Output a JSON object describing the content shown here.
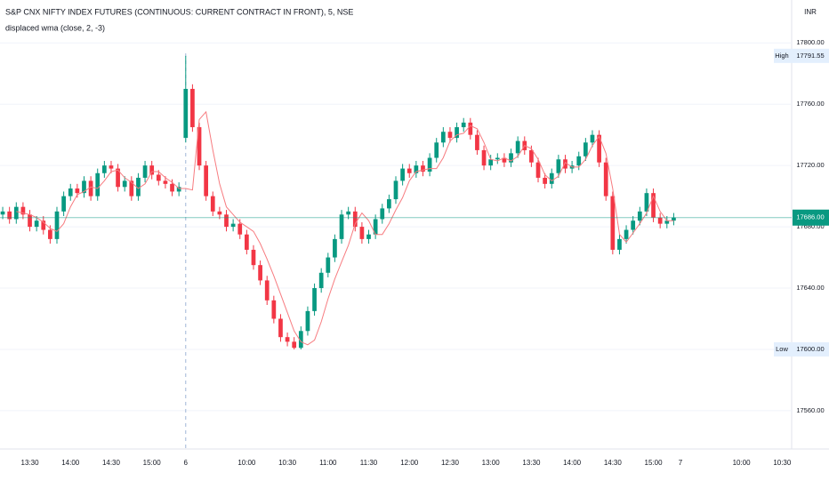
{
  "chart_data": {
    "type": "candlestick",
    "title": "S&P CNX NIFTY INDEX FUTURES (CONTINUOUS: CURRENT CONTRACT IN FRONT), 5, NSE",
    "currency": "INR",
    "up_color": "#089981",
    "down_color": "#f23645",
    "grid": true,
    "ylim": [
      17535,
      17828
    ],
    "yticks": [
      {
        "value": 17560,
        "label": "17560.00"
      },
      {
        "value": 17600,
        "label": "17600.00"
      },
      {
        "value": 17640,
        "label": "17640.00"
      },
      {
        "value": 17680,
        "label": "17680.00"
      },
      {
        "value": 17720,
        "label": "17720.00"
      },
      {
        "value": 17760,
        "label": "17760.00"
      },
      {
        "value": 17800,
        "label": "17800.00"
      }
    ],
    "xlim": [
      -0.4,
      116.4
    ],
    "xticks": [
      {
        "value": 4,
        "label": "13:30"
      },
      {
        "value": 10,
        "label": "14:00"
      },
      {
        "value": 16,
        "label": "14:30"
      },
      {
        "value": 22,
        "label": "15:00"
      },
      {
        "value": 27,
        "label": "6"
      },
      {
        "value": 36,
        "label": "10:00"
      },
      {
        "value": 42,
        "label": "10:30"
      },
      {
        "value": 48,
        "label": "11:00"
      },
      {
        "value": 54,
        "label": "11:30"
      },
      {
        "value": 60,
        "label": "12:00"
      },
      {
        "value": 66,
        "label": "12:30"
      },
      {
        "value": 72,
        "label": "13:00"
      },
      {
        "value": 78,
        "label": "13:30"
      },
      {
        "value": 84,
        "label": "14:00"
      },
      {
        "value": 90,
        "label": "14:30"
      },
      {
        "value": 96,
        "label": "15:00"
      },
      {
        "value": 100,
        "label": "7"
      },
      {
        "value": 109,
        "label": "10:00"
      },
      {
        "value": 115,
        "label": "10:30"
      }
    ],
    "session_break": 27,
    "open": [
      17688,
      17690,
      17685,
      17693,
      17688,
      17680,
      17684,
      17678,
      17672,
      17690,
      17700,
      17705,
      17702,
      17710,
      17700,
      17715,
      17720,
      17718,
      17706,
      17710,
      17700,
      17712,
      17720,
      17714,
      17710,
      17708,
      17703,
      17738,
      17770,
      17745,
      17720,
      17700,
      17690,
      17688,
      17680,
      17682,
      17675,
      17665,
      17655,
      17645,
      17632,
      17620,
      17608,
      17605,
      17601,
      17612,
      17625,
      17640,
      17650,
      17660,
      17672,
      17688,
      17690,
      17680,
      17672,
      17675,
      17685,
      17692,
      17698,
      17710,
      17718,
      17715,
      17720,
      17716,
      17725,
      17735,
      17742,
      17738,
      17745,
      17748,
      17740,
      17730,
      17720,
      17724,
      17725,
      17722,
      17728,
      17736,
      17730,
      17722,
      17712,
      17708,
      17715,
      17724,
      17718,
      17720,
      17726,
      17735,
      17740,
      17722,
      17700,
      17665,
      17672,
      17678,
      17684,
      17690,
      17702,
      17686,
      17682,
      17684
    ],
    "high": [
      17693,
      17693,
      17696,
      17696,
      17691,
      17687,
      17687,
      17681,
      17693,
      17703,
      17708,
      17708,
      17713,
      17713,
      17718,
      17723,
      17723,
      17721,
      17713,
      17713,
      17715,
      17723,
      17723,
      17717,
      17713,
      17711,
      17709,
      17791.55,
      17773,
      17748,
      17723,
      17703,
      17693,
      17691,
      17685,
      17685,
      17678,
      17668,
      17658,
      17648,
      17635,
      17623,
      17611,
      17608,
      17615,
      17628,
      17643,
      17653,
      17663,
      17675,
      17691,
      17693,
      17693,
      17683,
      17678,
      17688,
      17695,
      17701,
      17713,
      17721,
      17721,
      17723,
      17723,
      17728,
      17738,
      17745,
      17745,
      17748,
      17751,
      17751,
      17743,
      17733,
      17727,
      17728,
      17728,
      17731,
      17739,
      17739,
      17733,
      17725,
      17715,
      17718,
      17727,
      17727,
      17723,
      17729,
      17738,
      17743,
      17743,
      17725,
      17703,
      17675,
      17681,
      17687,
      17693,
      17705,
      17705,
      17689,
      17687,
      17689
    ],
    "low": [
      17685,
      17682,
      17682,
      17685,
      17677,
      17677,
      17675,
      17669,
      17669,
      17687,
      17697,
      17699,
      17699,
      17697,
      17697,
      17712,
      17715,
      17703,
      17703,
      17697,
      17697,
      17709,
      17711,
      17707,
      17705,
      17700,
      17700,
      17735,
      17742,
      17717,
      17697,
      17687,
      17685,
      17677,
      17677,
      17672,
      17662,
      17652,
      17642,
      17629,
      17617,
      17605,
      17602,
      17600,
      17600,
      17609,
      17622,
      17637,
      17647,
      17657,
      17669,
      17685,
      17677,
      17669,
      17669,
      17672,
      17682,
      17689,
      17695,
      17707,
      17712,
      17712,
      17713,
      17713,
      17722,
      17732,
      17735,
      17735,
      17742,
      17737,
      17727,
      17717,
      17717,
      17721,
      17719,
      17719,
      17725,
      17727,
      17719,
      17709,
      17705,
      17705,
      17712,
      17715,
      17715,
      17717,
      17723,
      17732,
      17719,
      17697,
      17662,
      17662,
      17669,
      17675,
      17681,
      17687,
      17683,
      17679,
      17679,
      17681
    ],
    "close": [
      17690,
      17685,
      17693,
      17688,
      17680,
      17684,
      17678,
      17672,
      17690,
      17700,
      17705,
      17702,
      17710,
      17700,
      17715,
      17720,
      17718,
      17706,
      17710,
      17700,
      17712,
      17720,
      17714,
      17710,
      17708,
      17703,
      17706,
      17770,
      17745,
      17720,
      17700,
      17690,
      17688,
      17680,
      17682,
      17675,
      17665,
      17655,
      17645,
      17632,
      17620,
      17608,
      17605,
      17601,
      17612,
      17625,
      17640,
      17650,
      17660,
      17672,
      17688,
      17690,
      17680,
      17672,
      17675,
      17685,
      17692,
      17698,
      17710,
      17718,
      17715,
      17720,
      17716,
      17725,
      17735,
      17742,
      17738,
      17745,
      17748,
      17740,
      17730,
      17720,
      17724,
      17725,
      17722,
      17728,
      17736,
      17730,
      17722,
      17712,
      17708,
      17715,
      17724,
      17718,
      17720,
      17726,
      17735,
      17740,
      17722,
      17700,
      17665,
      17672,
      17678,
      17684,
      17690,
      17702,
      17686,
      17682,
      17684,
      17686
    ],
    "series": [
      {
        "name": "displaced wma (close, 2, -3)",
        "color": "#f77c80",
        "values": [
          null,
          null,
          17690,
          17689,
          17688,
          17686,
          17683,
          17679,
          17677,
          17682,
          17693,
          17701,
          17703,
          17706,
          17705,
          17710,
          17716,
          17717,
          17712,
          17709,
          17705,
          17708,
          17716,
          17716,
          17712,
          17709,
          17705,
          17705,
          17704,
          17750,
          17755,
          17730,
          17708,
          17693,
          17688,
          17683,
          17680,
          17677,
          17669,
          17659,
          17648,
          17636,
          17624,
          17612,
          17605,
          17603,
          17606,
          17618,
          17633,
          17646,
          17657,
          17668,
          17682,
          17689,
          17684,
          17675,
          17675,
          17682,
          17691,
          17699,
          17710,
          17716,
          17717,
          17718,
          17718,
          17725,
          17736,
          17740,
          17741,
          17746,
          17744,
          17735,
          17724,
          17723,
          17725,
          17723,
          17726,
          17733,
          17731,
          17724,
          17714,
          17710,
          17713,
          17722,
          17719,
          17719,
          17724,
          17733,
          17739,
          17728,
          17705,
          17675,
          17670,
          17676,
          17682,
          17689,
          17700,
          17690,
          17684,
          17684
        ]
      }
    ],
    "last_price": {
      "value": 17686,
      "label": "17686.00"
    },
    "high_marker": {
      "name": "High",
      "value": 17791.55
    },
    "low_marker": {
      "name": "Low",
      "value": {
        "value": 17600,
        "label": "17600.00"
      }
    }
  }
}
